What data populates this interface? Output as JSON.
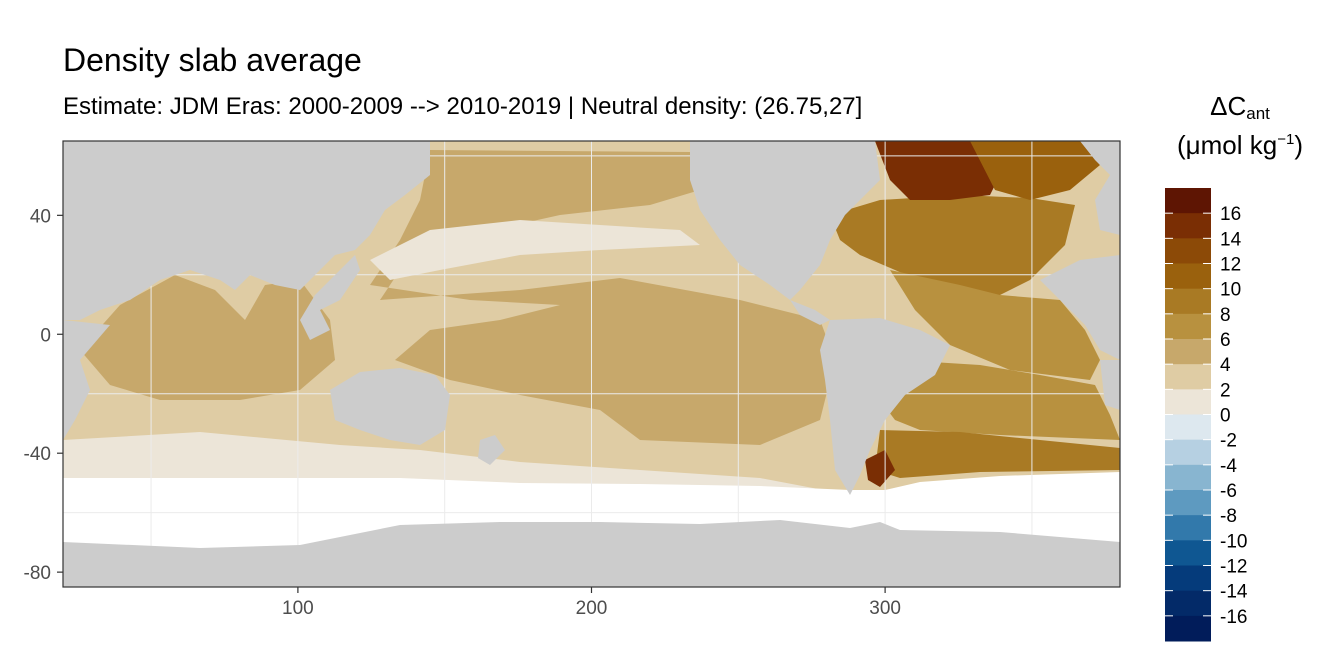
{
  "title": "Density slab average",
  "subtitle": "Estimate: JDM Eras: 2000-2009 --> 2010-2019 | Neutral density: (26.75,27]",
  "legend": {
    "title_main": "ΔC",
    "title_sub": "ant",
    "unit_pre": "(μmol kg",
    "unit_sup": "−1",
    "unit_post": ")",
    "labels": [
      "16",
      "14",
      "12",
      "10",
      "8",
      "6",
      "4",
      "2",
      "0",
      "-2",
      "-4",
      "-6",
      "-8",
      "-10",
      "-12",
      "-14",
      "-16"
    ],
    "colors": [
      "#5e1503",
      "#7a2e04",
      "#8c4a07",
      "#9a610d",
      "#a97a24",
      "#b8913f",
      "#c7a86b",
      "#dfcca4",
      "#ece5d8",
      "#dde8ef",
      "#b6d0e2",
      "#88b5d0",
      "#5e9ac0",
      "#3279ab",
      "#0f5792",
      "#053b7b",
      "#032a68",
      "#011c5a"
    ]
  },
  "axes": {
    "x_ticks": [
      100,
      200,
      300
    ],
    "y_ticks": [
      40,
      0,
      -40,
      -80
    ],
    "x_tick_labels": [
      "100",
      "200",
      "300"
    ],
    "y_tick_labels": [
      "40",
      "0",
      "-40",
      "-80"
    ],
    "xlim": [
      20,
      380
    ],
    "ylim": [
      -85,
      65
    ]
  },
  "colors": {
    "land": "#cccccc",
    "no_data": "#ffffff",
    "panel_border": "#333333",
    "grid": "#ebebeb"
  }
}
